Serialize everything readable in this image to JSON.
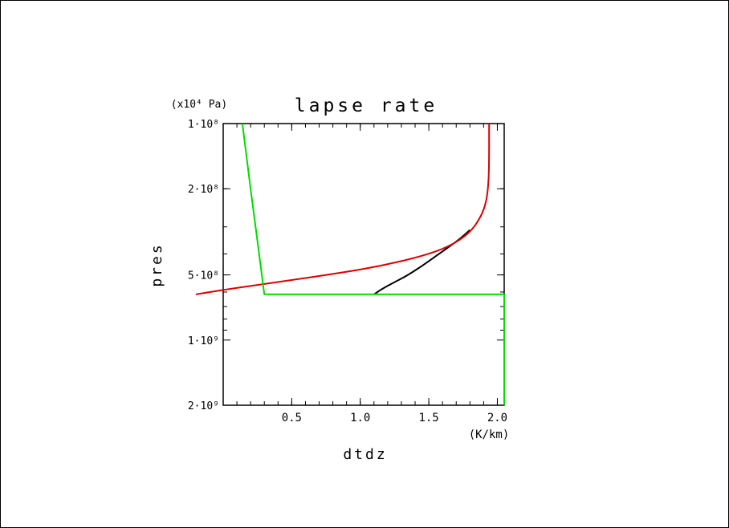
{
  "chart_data": {
    "type": "line",
    "title": "lapse rate",
    "xlabel": "dtdz",
    "x_unit": "(K/km)",
    "ylabel": "pres",
    "y_unit": "(x10⁴ Pa)",
    "xlim": [
      0.0,
      2.05
    ],
    "ylim": [
      100000000,
      2000000000
    ],
    "y_scale": "log",
    "y_inverted": true,
    "x_ticks": [
      {
        "v": 0.5,
        "label": "0.5"
      },
      {
        "v": 1.0,
        "label": "1.0"
      },
      {
        "v": 1.5,
        "label": "1.5"
      },
      {
        "v": 2.0,
        "label": "2.0"
      }
    ],
    "y_ticks": [
      {
        "v": 100000000,
        "label": "1·10⁸"
      },
      {
        "v": 200000000,
        "label": "2·10⁸"
      },
      {
        "v": 500000000,
        "label": "5·10⁸"
      },
      {
        "v": 1000000000,
        "label": "1·10⁹"
      },
      {
        "v": 2000000000,
        "label": "2·10⁹"
      }
    ],
    "series": [
      {
        "color": "#000000",
        "points": [
          [
            1.1,
            615000000
          ],
          [
            1.16,
            580000000
          ],
          [
            1.25,
            540000000
          ],
          [
            1.35,
            500000000
          ],
          [
            1.45,
            455000000
          ],
          [
            1.55,
            410000000
          ],
          [
            1.65,
            370000000
          ],
          [
            1.73,
            340000000
          ],
          [
            1.8,
            310000000
          ]
        ]
      },
      {
        "color": "#dd0000",
        "points": [
          [
            -0.2,
            615000000
          ],
          [
            0.05,
            580000000
          ],
          [
            0.4,
            540000000
          ],
          [
            0.85,
            490000000
          ],
          [
            1.15,
            455000000
          ],
          [
            1.45,
            410000000
          ],
          [
            1.65,
            370000000
          ],
          [
            1.8,
            320000000
          ],
          [
            1.88,
            270000000
          ],
          [
            1.92,
            230000000
          ],
          [
            1.935,
            190000000
          ],
          [
            1.94,
            150000000
          ],
          [
            1.94,
            100000000
          ]
        ]
      },
      {
        "color": "#00dd00",
        "points": [
          [
            0.14,
            100000000
          ],
          [
            0.2,
            200000000
          ],
          [
            0.25,
            350000000
          ],
          [
            0.3,
            615000000
          ],
          [
            2.05,
            615000000
          ],
          [
            2.05,
            2000000000
          ]
        ]
      }
    ]
  }
}
